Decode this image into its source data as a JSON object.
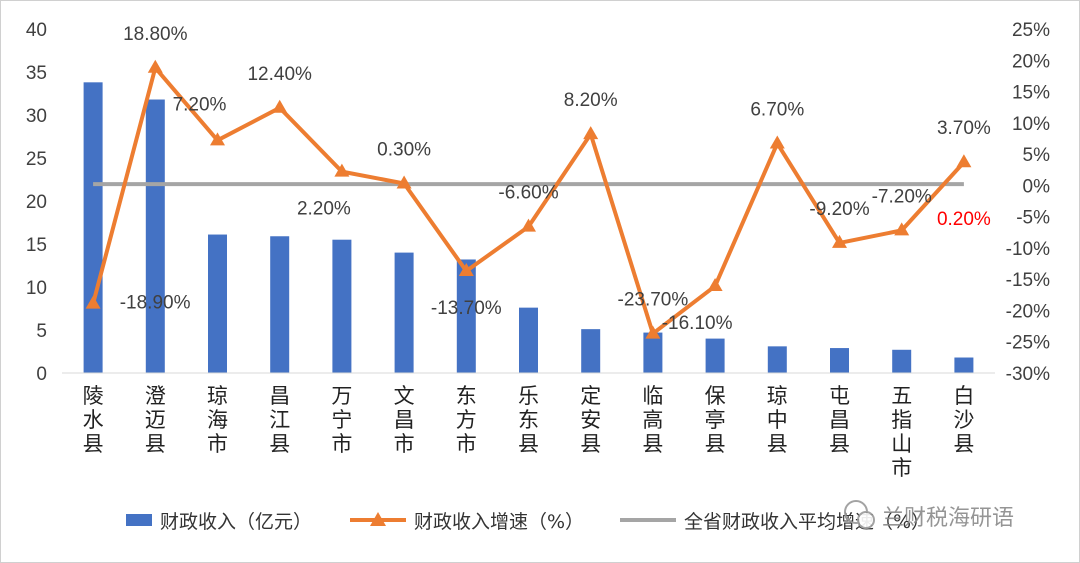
{
  "chart_data": {
    "type": "bar",
    "categories": [
      "陵水县",
      "澄迈县",
      "琼海市",
      "昌江县",
      "万宁市",
      "文昌市",
      "东方市",
      "乐东县",
      "定安县",
      "临高县",
      "保亭县",
      "琼中县",
      "屯昌县",
      "五指山市",
      "白沙县"
    ],
    "series": [
      {
        "name": "财政收入（亿元）",
        "type": "bar",
        "axis": "left",
        "color": "#4472C4",
        "values": [
          33.8,
          31.8,
          16.1,
          15.9,
          15.5,
          14.0,
          13.2,
          7.6,
          5.1,
          4.7,
          4.0,
          3.1,
          2.9,
          2.7,
          1.8
        ]
      },
      {
        "name": "财政收入增速（%）",
        "type": "line",
        "axis": "right",
        "color": "#ED7D31",
        "marker": "triangle",
        "values": [
          -18.9,
          18.8,
          7.2,
          12.4,
          2.2,
          0.3,
          -13.7,
          -6.6,
          8.2,
          -23.7,
          -16.1,
          6.7,
          -9.2,
          -7.2,
          3.7
        ]
      },
      {
        "name": "全省财政收入平均增速（%）",
        "type": "line",
        "axis": "right",
        "color": "#A5A5A5",
        "values": [
          0.2,
          0.2,
          0.2,
          0.2,
          0.2,
          0.2,
          0.2,
          0.2,
          0.2,
          0.2,
          0.2,
          0.2,
          0.2,
          0.2,
          0.2
        ]
      }
    ],
    "data_labels": [
      "-18.90%",
      "18.80%",
      "7.20%",
      "12.40%",
      "2.20%",
      "0.30%",
      "-13.70%",
      "-6.60%",
      "8.20%",
      "-23.70%",
      "-16.10%",
      "6.70%",
      "-9.20%",
      "-7.20%",
      "3.70%"
    ],
    "average_label": "0.20%",
    "average_label_color": "#FF0000",
    "y_left": {
      "ticks": [
        "0",
        "5",
        "10",
        "15",
        "20",
        "25",
        "30",
        "35",
        "40"
      ],
      "lim": [
        0,
        40
      ]
    },
    "y_right": {
      "ticks": [
        "-30%",
        "-25%",
        "-20%",
        "-15%",
        "-10%",
        "-5%",
        "0%",
        "5%",
        "10%",
        "15%",
        "20%",
        "25%"
      ],
      "lim": [
        -30,
        25
      ]
    },
    "legend_position": "bottom",
    "grid": false
  },
  "legend": {
    "bar": "财政收入（亿元）",
    "line": "财政收入增速（%）",
    "avg": "全省财政收入平均增速（%）"
  },
  "watermark": "兰财税海研语"
}
